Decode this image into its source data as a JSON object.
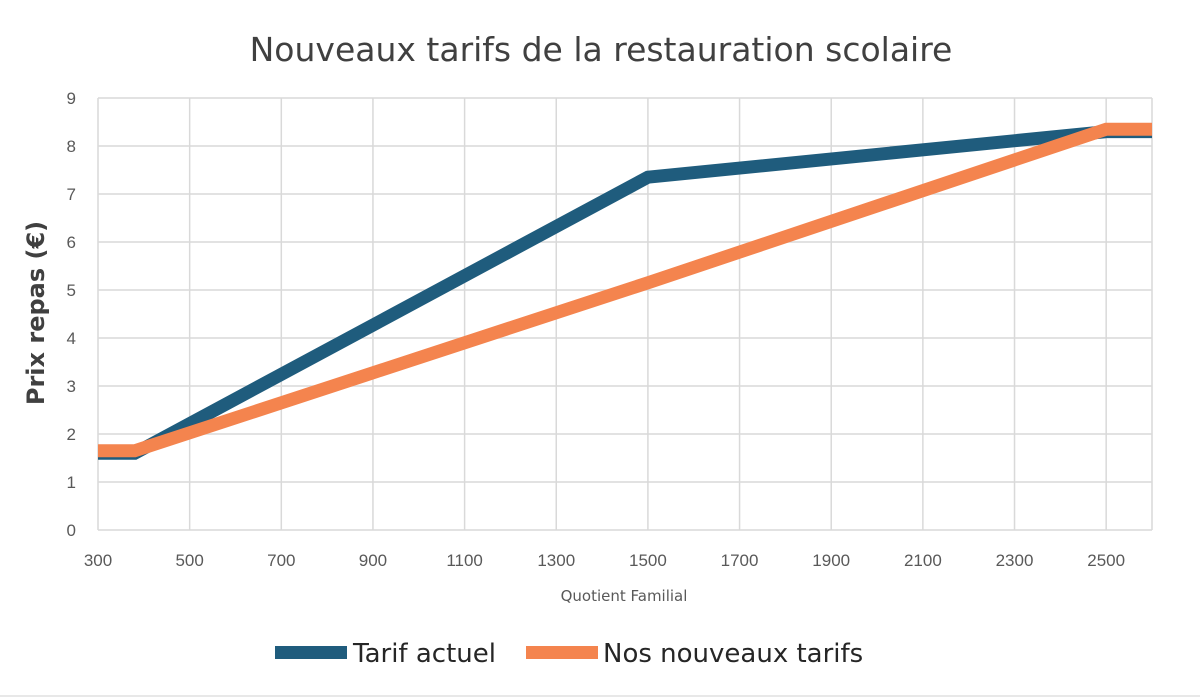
{
  "chart_data": {
    "type": "line",
    "title": "Nouveaux tarifs de la restauration scolaire",
    "xlabel": "Quotient Familial",
    "ylabel": "Prix repas (€)",
    "xlim": [
      300,
      2600
    ],
    "ylim": [
      0,
      9
    ],
    "x_ticks": [
      300,
      500,
      700,
      900,
      1100,
      1300,
      1500,
      1700,
      1900,
      2100,
      2300,
      2500
    ],
    "y_ticks": [
      0,
      1,
      2,
      3,
      4,
      5,
      6,
      7,
      8,
      9
    ],
    "grid": true,
    "legend_position": "bottom",
    "series": [
      {
        "name": "Tarif actuel",
        "color": "#1F5C7D",
        "x": [
          300,
          380,
          1500,
          2500,
          2600
        ],
        "y": [
          1.6,
          1.6,
          7.35,
          8.3,
          8.3
        ]
      },
      {
        "name": "Nos nouveaux tarifs",
        "color": "#F4844E",
        "x": [
          300,
          380,
          1500,
          2500,
          2600
        ],
        "y": [
          1.65,
          1.65,
          5.15,
          8.35,
          8.35
        ]
      }
    ]
  }
}
